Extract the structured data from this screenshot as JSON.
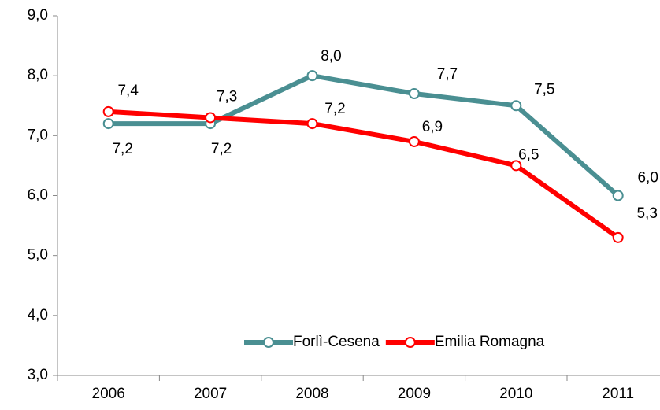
{
  "chart_data": {
    "type": "line",
    "categories": [
      "2006",
      "2007",
      "2008",
      "2009",
      "2010",
      "2011"
    ],
    "series": [
      {
        "name": "Forlì-Cesena",
        "color": "#4a8f92",
        "values": [
          7.2,
          7.2,
          8.0,
          7.7,
          7.5,
          6.0
        ],
        "value_labels": [
          "7,2",
          "7,2",
          "8,0",
          "7,7",
          "7,5",
          "6,0"
        ]
      },
      {
        "name": "Emilia Romagna",
        "color": "#ff0000",
        "values": [
          7.4,
          7.3,
          7.2,
          6.9,
          6.5,
          5.3
        ],
        "value_labels": [
          "7,4",
          "7,3",
          "7,2",
          "6,9",
          "6,5",
          "5,3"
        ]
      }
    ],
    "ylim": [
      3,
      9
    ],
    "yticks": [
      {
        "value": 3,
        "label": "3,0"
      },
      {
        "value": 4,
        "label": "4,0"
      },
      {
        "value": 5,
        "label": "5,0"
      },
      {
        "value": 6,
        "label": "6,0"
      },
      {
        "value": 7,
        "label": "7,0"
      },
      {
        "value": 8,
        "label": "8,0"
      },
      {
        "value": 9,
        "label": "9,0"
      }
    ],
    "grid": false,
    "legend": "lower right"
  }
}
